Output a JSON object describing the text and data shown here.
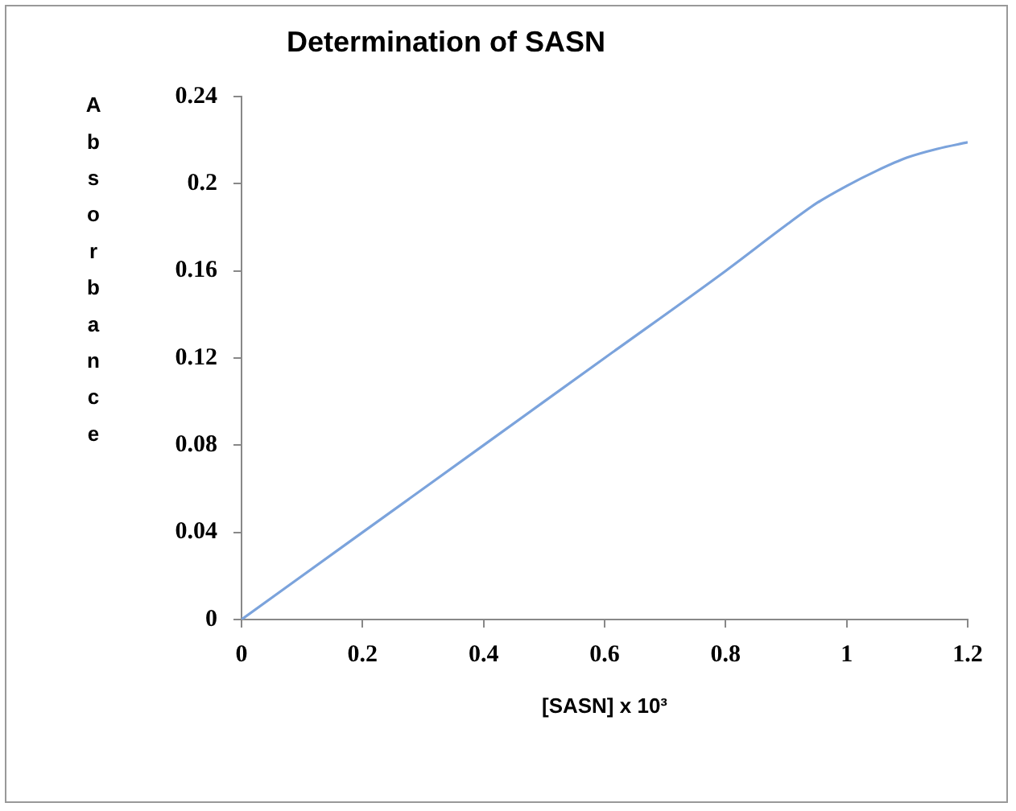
{
  "chart_data": {
    "type": "line",
    "title": "Determination of SASN",
    "xlabel": "[SASN] x 10³",
    "ylabel": "Absorbance",
    "x": [
      0,
      0.2,
      0.4,
      0.6,
      0.8,
      0.9,
      0.95,
      1,
      1.05,
      1.1,
      1.15,
      1.2
    ],
    "series": [
      {
        "color": "#7ba3dc",
        "values": [
          0,
          0.04,
          0.08,
          0.12,
          0.16,
          0.181,
          0.191,
          0.199,
          0.206,
          0.212,
          0.216,
          0.219
        ]
      }
    ],
    "xlim": [
      0,
      1.2
    ],
    "xticks": [
      0,
      0.2,
      0.4,
      0.6,
      0.8,
      1,
      1.2
    ],
    "ylim": [
      0,
      0.24
    ],
    "yticks": [
      0,
      0.04,
      0.08,
      0.12,
      0.16,
      0.2,
      0.24
    ],
    "grid": false,
    "legend": false,
    "marker": "none",
    "line_style": "solid"
  }
}
